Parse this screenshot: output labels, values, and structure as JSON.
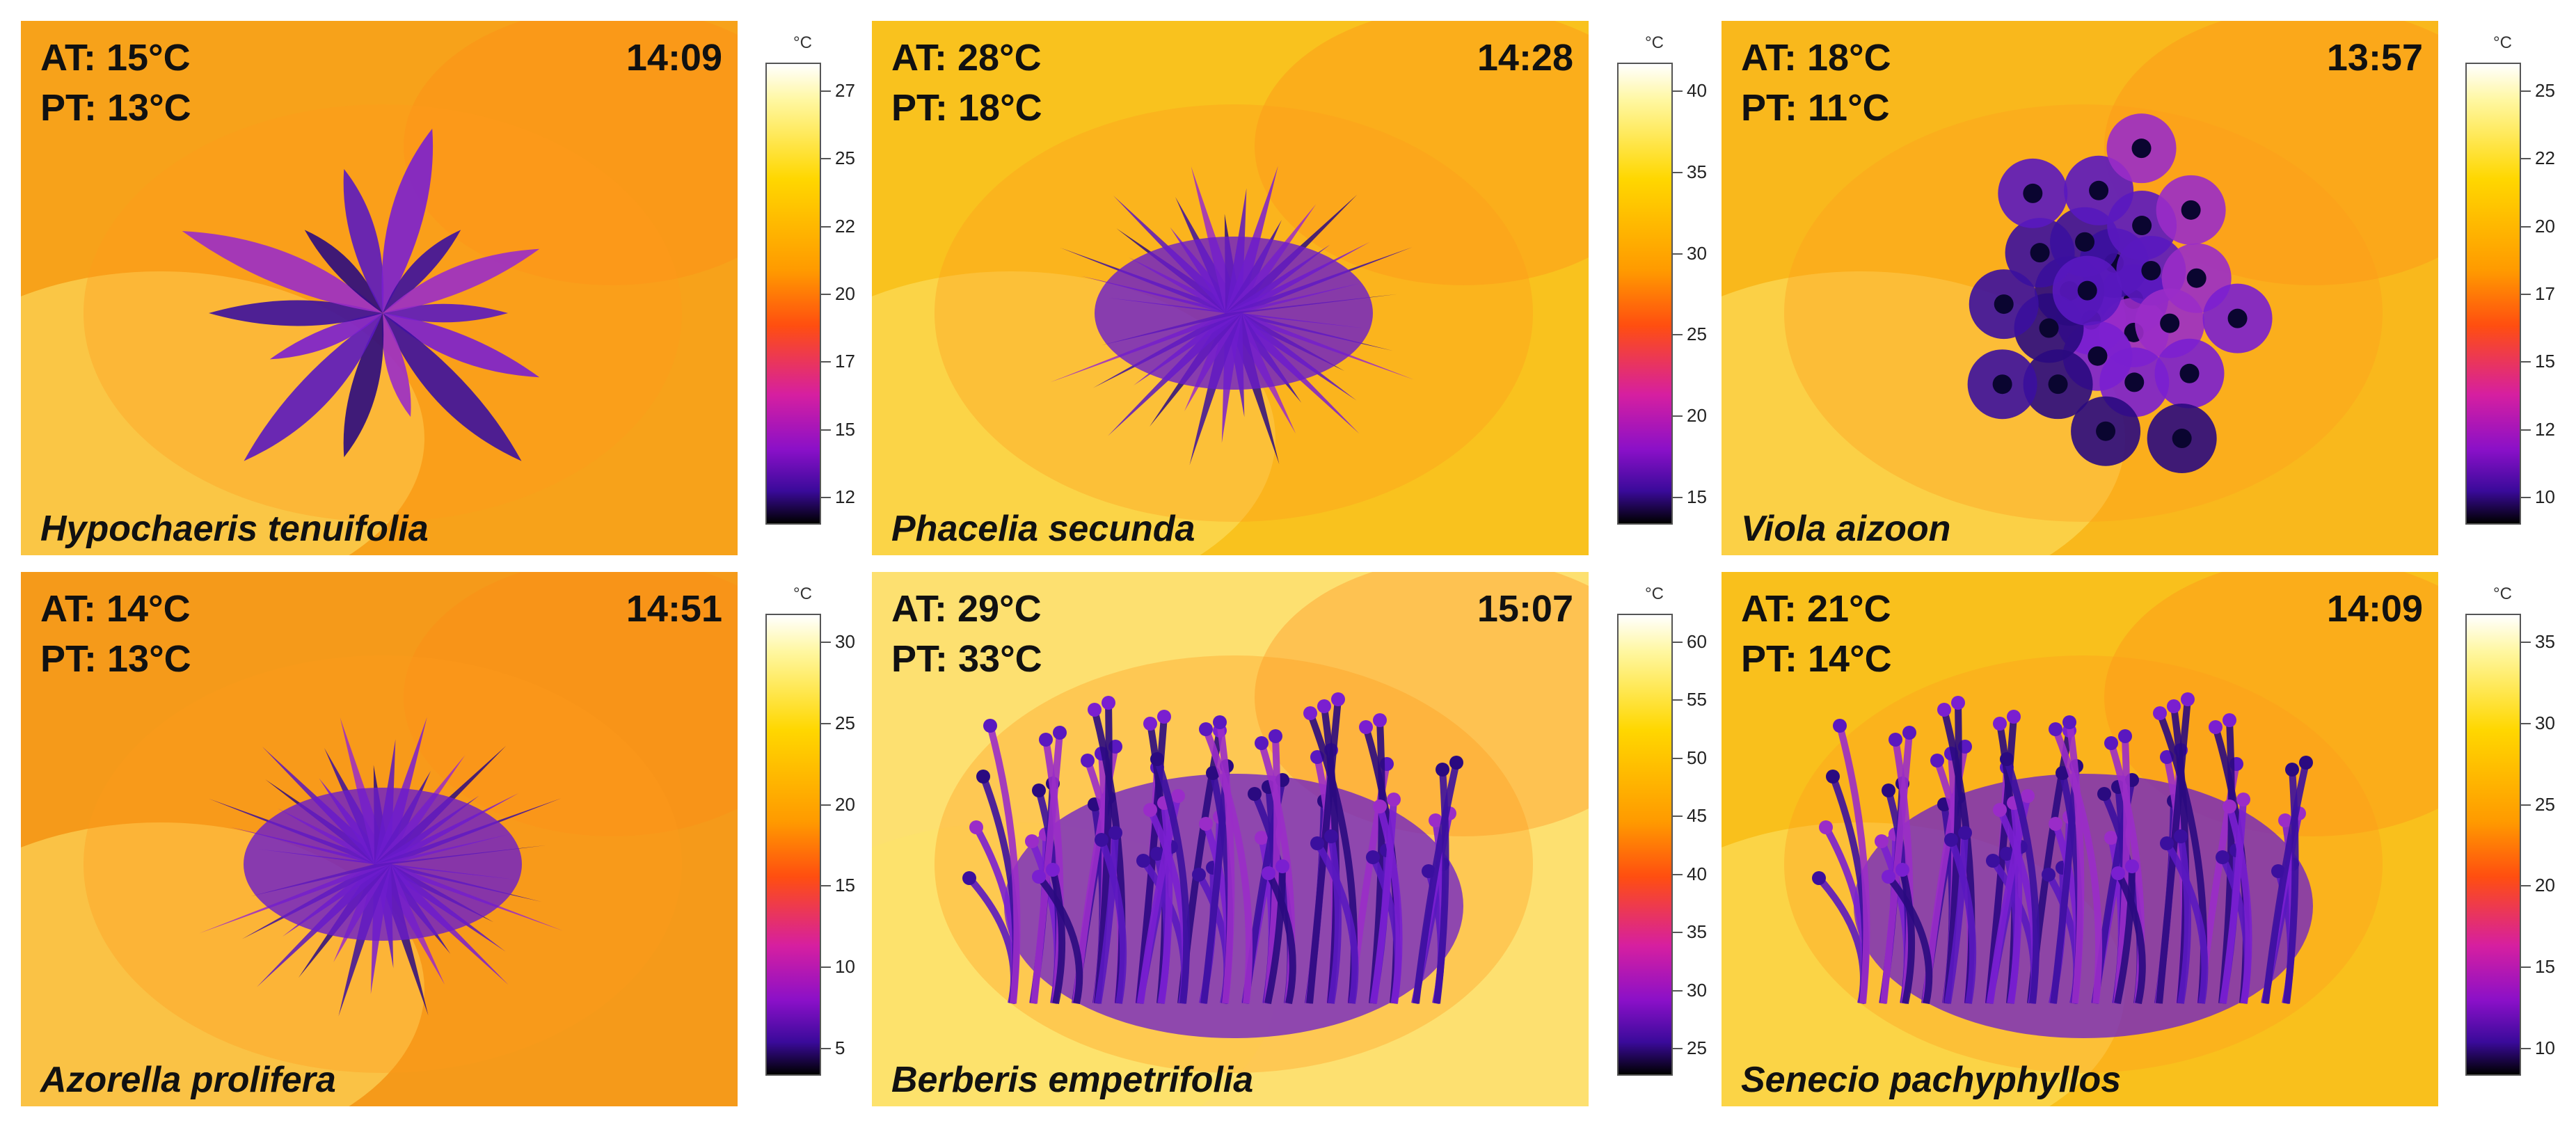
{
  "panels": [
    {
      "at": "AT: 15°C",
      "pt": "PT: 13°C",
      "time": "14:09",
      "species": "Hypochaeris tenuifolia",
      "unit": "°C",
      "ticks": [
        "27",
        "25",
        "22",
        "20",
        "17",
        "15",
        "12"
      ],
      "plant": "rosette",
      "bg": "#f7a21a"
    },
    {
      "at": "AT: 28°C",
      "pt": "PT: 18°C",
      "time": "14:28",
      "species": "Phacelia secunda",
      "unit": "°C",
      "ticks": [
        "40",
        "35",
        "30",
        "25",
        "20",
        "15"
      ],
      "plant": "spiky",
      "bg": "#f9c21e"
    },
    {
      "at": "AT: 18°C",
      "pt": "PT: 11°C",
      "time": "13:57",
      "species": "Viola aizoon",
      "unit": "°C",
      "ticks": [
        "25",
        "22",
        "20",
        "17",
        "15",
        "12",
        "10"
      ],
      "plant": "cushion",
      "bg": "#f9b81c"
    },
    {
      "at": "AT: 14°C",
      "pt": "PT: 13°C",
      "time": "14:51",
      "species": "Azorella prolifera",
      "unit": "°C",
      "ticks": [
        "30",
        "25",
        "20",
        "15",
        "10",
        "5"
      ],
      "plant": "spiky",
      "bg": "#f59a1a"
    },
    {
      "at": "AT: 29°C",
      "pt": "PT: 33°C",
      "time": "15:07",
      "species": "Berberis empetrifolia",
      "unit": "°C",
      "ticks": [
        "60",
        "55",
        "50",
        "45",
        "40",
        "35",
        "30",
        "25"
      ],
      "plant": "shrub",
      "bg": "#fde070"
    },
    {
      "at": "AT: 21°C",
      "pt": "PT: 14°C",
      "time": "14:09",
      "species": "Senecio pachyphyllos",
      "unit": "°C",
      "ticks": [
        "35",
        "30",
        "25",
        "20",
        "15",
        "10"
      ],
      "plant": "shrub",
      "bg": "#f9c01c"
    }
  ]
}
